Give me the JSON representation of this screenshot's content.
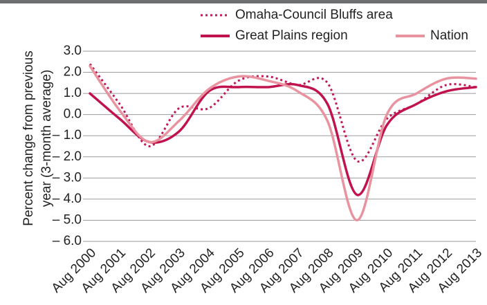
{
  "chart_data": {
    "type": "line",
    "y_label_lines": [
      "Percent change from previous",
      "year (3-month average)"
    ],
    "categories": [
      "Aug 2000",
      "Aug 2001",
      "Aug 2002",
      "Aug 2003",
      "Aug 2004",
      "Aug 2005",
      "Aug 2006",
      "Aug 2007",
      "Aug 2008",
      "Aug 2009",
      "Aug 2010",
      "Aug 2011",
      "Aug 2012",
      "Aug 2013"
    ],
    "series": [
      {
        "name": "Omaha-Council Bluffs area",
        "color": "#c2185b",
        "dash": "dotted",
        "values": [
          2.4,
          0.5,
          -1.5,
          0.3,
          0.3,
          1.6,
          1.8,
          1.4,
          1.5,
          -2.2,
          -0.2,
          0.5,
          1.4,
          1.3
        ]
      },
      {
        "name": "Great Plains region",
        "color": "#c0134e",
        "dash": "solid",
        "values": [
          1.0,
          -0.2,
          -1.3,
          -0.8,
          1.1,
          1.3,
          1.3,
          1.4,
          0.5,
          -3.8,
          -0.5,
          0.5,
          1.1,
          1.3
        ]
      },
      {
        "name": "Nation",
        "color": "#e8939f",
        "dash": "solid",
        "values": [
          2.3,
          0.2,
          -1.3,
          -0.3,
          1.2,
          1.8,
          1.6,
          1.1,
          -0.3,
          -5.0,
          0.0,
          1.0,
          1.7,
          1.7
        ]
      }
    ],
    "ylim": [
      -6,
      3
    ],
    "yticks": [
      {
        "value": 3,
        "label": "3.0"
      },
      {
        "value": 2,
        "label": "2.0"
      },
      {
        "value": 1,
        "label": "1.0"
      },
      {
        "value": 0,
        "label": "0.0"
      },
      {
        "value": -1,
        "label": "– 1.0"
      },
      {
        "value": -2,
        "label": "– 2.0"
      },
      {
        "value": -3,
        "label": "– 3.0"
      },
      {
        "value": -4,
        "label": "– 4.0"
      },
      {
        "value": -5,
        "label": "– 5.0"
      },
      {
        "value": -6,
        "label": "– 6.0"
      }
    ],
    "grid": true
  }
}
